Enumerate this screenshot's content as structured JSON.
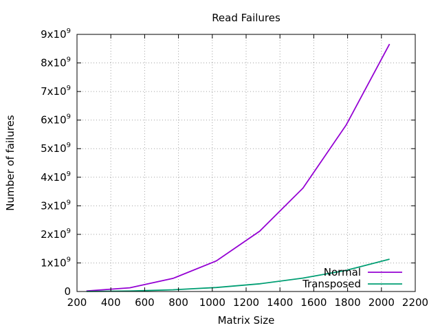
{
  "chart_data": {
    "type": "line",
    "title": "Read Failures",
    "xlabel": "Matrix Size",
    "ylabel": "Number of failures",
    "xlim": [
      200,
      2200
    ],
    "ylim": [
      0,
      9000000000
    ],
    "xticks": [
      200,
      400,
      600,
      800,
      1000,
      1200,
      1400,
      1600,
      1800,
      2000,
      2200
    ],
    "xtick_labels": [
      "200",
      "400",
      "600",
      "800",
      "1000",
      "1200",
      "1400",
      "1600",
      "1800",
      "2000",
      "2200"
    ],
    "yticks": [
      0,
      1000000000,
      2000000000,
      3000000000,
      4000000000,
      5000000000,
      6000000000,
      7000000000,
      8000000000,
      9000000000
    ],
    "ytick_labels": [
      {
        "base": "0",
        "exp": ""
      },
      {
        "base": "1x10",
        "exp": "9"
      },
      {
        "base": "2x10",
        "exp": "9"
      },
      {
        "base": "3x10",
        "exp": "9"
      },
      {
        "base": "4x10",
        "exp": "9"
      },
      {
        "base": "5x10",
        "exp": "9"
      },
      {
        "base": "6x10",
        "exp": "9"
      },
      {
        "base": "7x10",
        "exp": "9"
      },
      {
        "base": "8x10",
        "exp": "9"
      },
      {
        "base": "9x10",
        "exp": "9"
      }
    ],
    "grid": true,
    "legend_position": "bottom-right",
    "series": [
      {
        "name": "Normal",
        "color": "#9400d3",
        "x": [
          256,
          512,
          768,
          1024,
          1280,
          1536,
          1792,
          2048
        ],
        "y": [
          20000000,
          130000000,
          460000000,
          1070000000,
          2110000000,
          3620000000,
          5830000000,
          8660000000
        ]
      },
      {
        "name": "Transposed",
        "color": "#009e73",
        "x": [
          256,
          512,
          768,
          1024,
          1280,
          1536,
          1792,
          2048
        ],
        "y": [
          3000000,
          17000000,
          60000000,
          140000000,
          270000000,
          470000000,
          740000000,
          1130000000
        ]
      }
    ]
  }
}
